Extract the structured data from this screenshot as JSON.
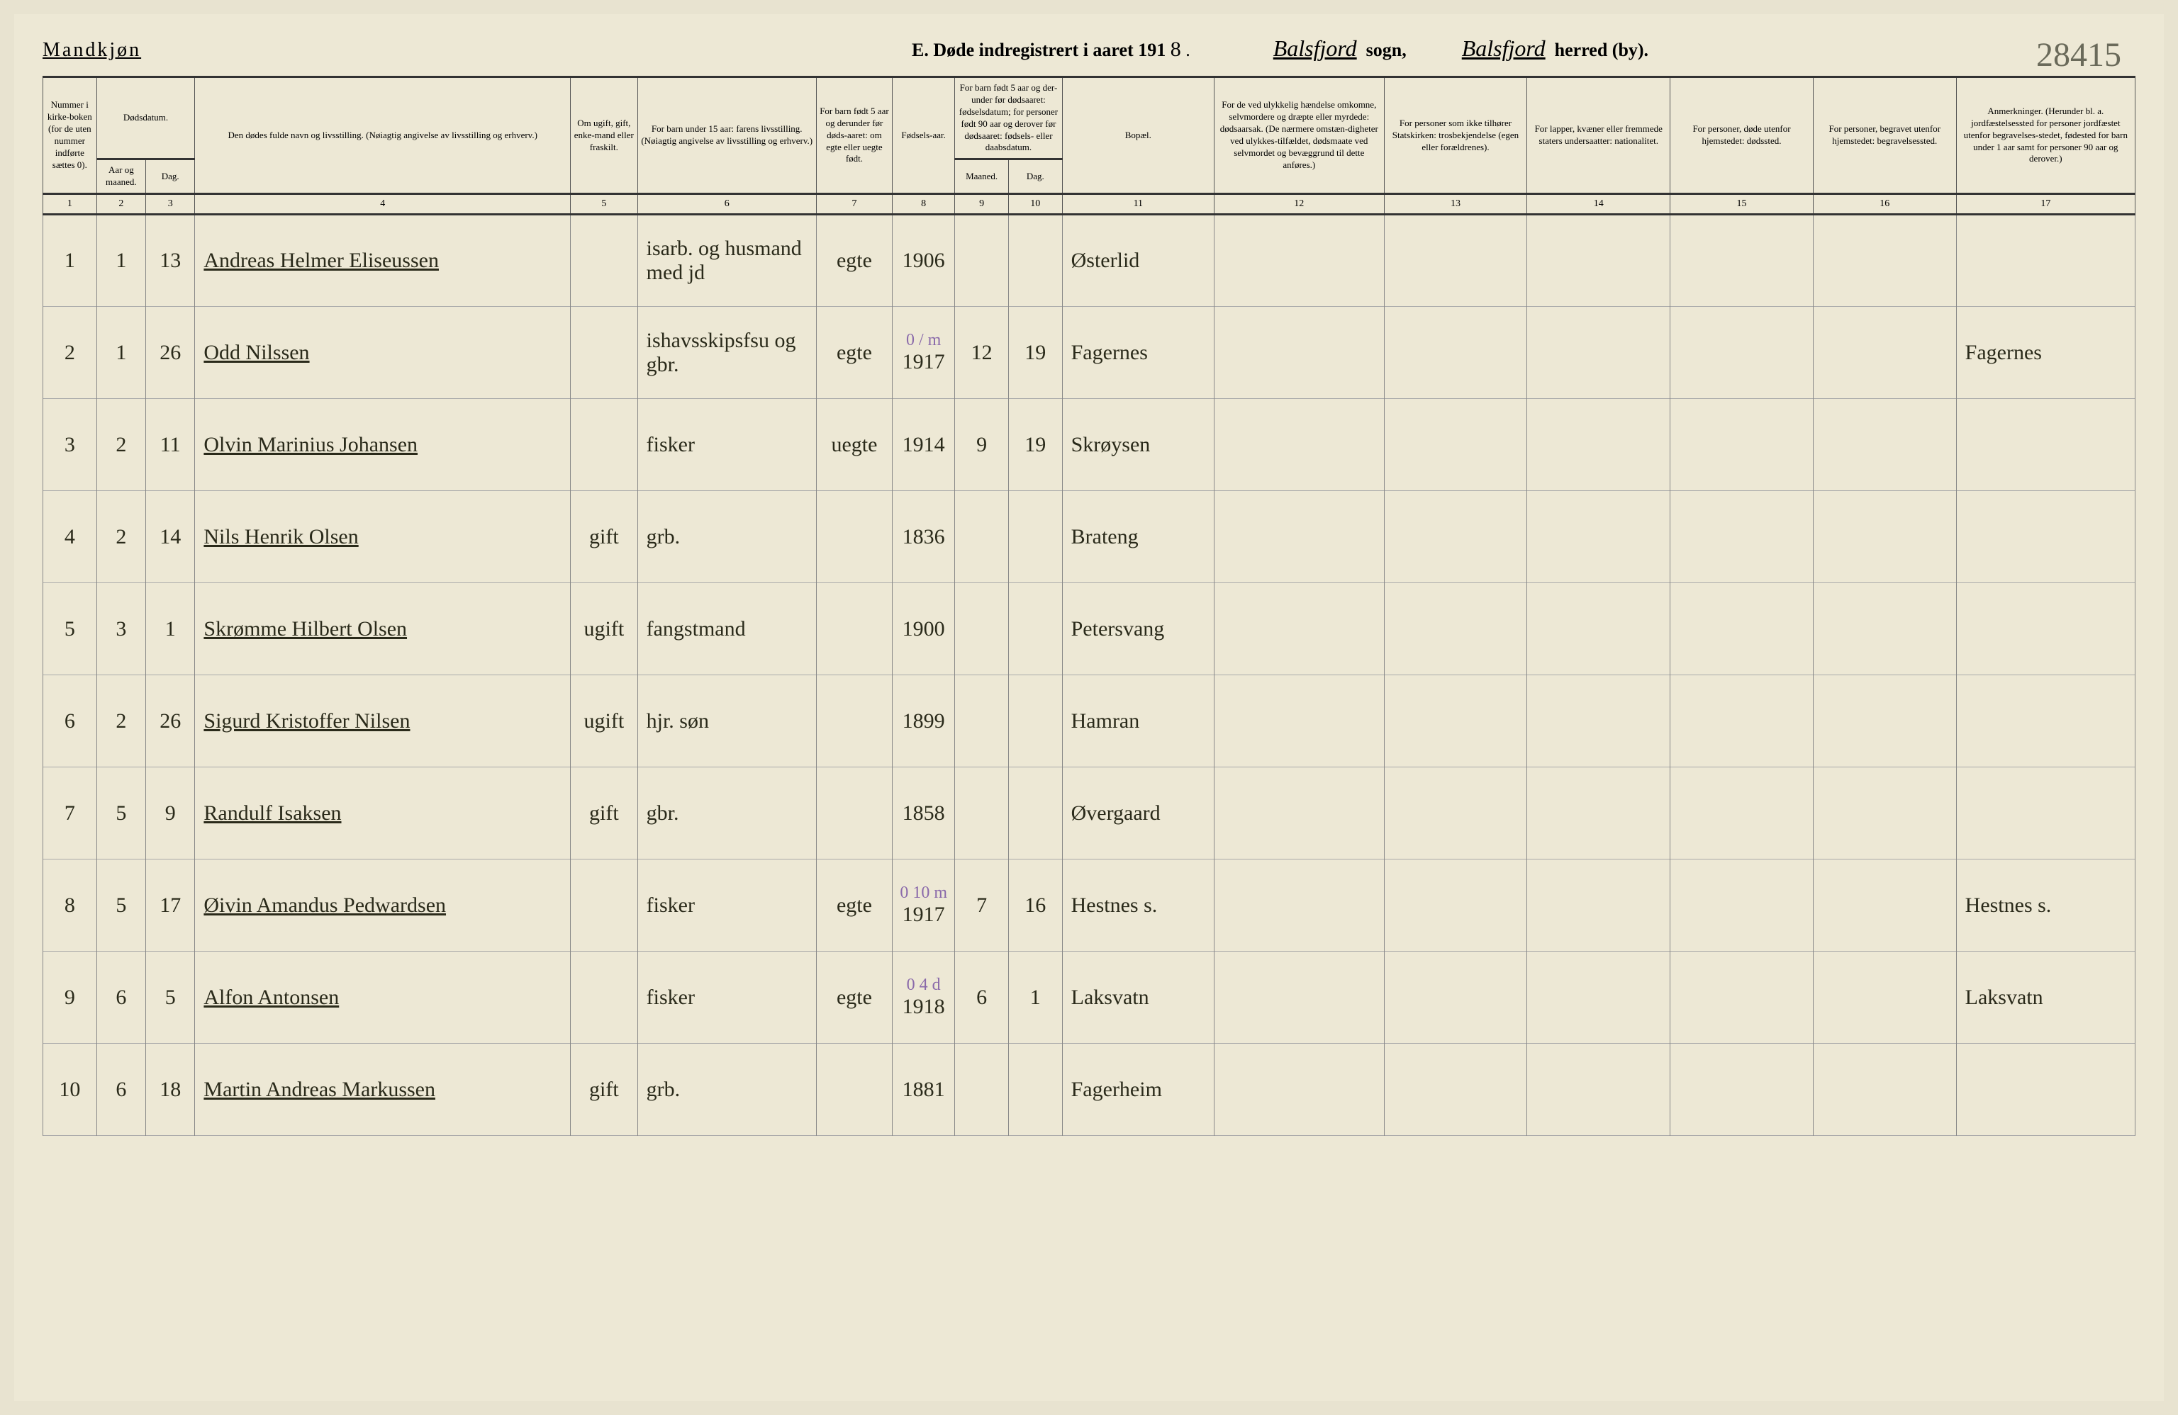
{
  "header": {
    "gender": "Mandkjøn",
    "title_prefix": "E.  Døde indregistrert i aaret 191",
    "year_suffix": "8",
    "sogn_value": "Balsfjord",
    "sogn_label": "sogn,",
    "herred_value": "Balsfjord",
    "herred_label": "herred (by).",
    "page_number": "28415"
  },
  "columns": {
    "c1": "Nummer i kirke-boken (for de uten nummer indførte sættes 0).",
    "c2a": "Dødsdatum.",
    "c2": "Aar og maaned.",
    "c3": "Dag.",
    "c4": "Den dødes fulde navn og livsstilling. (Nøiagtig angivelse av livsstilling og erhverv.)",
    "c5": "Om ugift, gift, enke-mand eller fraskilt.",
    "c6": "For barn under 15 aar: farens livsstilling. (Nøiagtig angivelse av livsstilling og erhverv.)",
    "c7": "For barn født 5 aar og derunder før døds-aaret: om egte eller uegte født.",
    "c8": "Fødsels-aar.",
    "c9a": "For barn født 5 aar og der-under før dødsaaret: fødselsdatum; for personer født 90 aar og derover før dødsaaret: fødsels- eller daabsdatum.",
    "c9": "Maaned.",
    "c10": "Dag.",
    "c11": "Bopæl.",
    "c12": "For de ved ulykkelig hændelse omkomne, selvmordere og dræpte eller myrdede: dødsaarsak. (De nærmere omstæn-digheter ved ulykkes-tilfældet, dødsmaate ved selvmordet og bevæggrund til dette anføres.)",
    "c13": "For personer som ikke tilhører Statskirken: trosbekjendelse (egen eller forældrenes).",
    "c14": "For lapper, kvæner eller fremmede staters undersaatter: nationalitet.",
    "c15": "For personer, døde utenfor hjemstedet: dødssted.",
    "c16": "For personer, begravet utenfor hjemstedet: begravelsessted.",
    "c17": "Anmerkninger. (Herunder bl. a. jordfæstelsessted for personer jordfæstet utenfor begravelses-stedet, fødested for barn under 1 aar samt for personer 90 aar og derover.)"
  },
  "colnums": [
    "1",
    "2",
    "3",
    "4",
    "5",
    "6",
    "7",
    "8",
    "9",
    "10",
    "11",
    "12",
    "13",
    "14",
    "15",
    "16",
    "17"
  ],
  "rows": [
    {
      "n": "1",
      "m": "1",
      "d": "13",
      "name": "Andreas Helmer Eliseussen",
      "status": "",
      "father": "isarb. og husmand med jd",
      "egte": "egte",
      "year": "1906",
      "bm": "",
      "bd": "",
      "place": "Østerlid",
      "note": ""
    },
    {
      "n": "2",
      "m": "1",
      "d": "26",
      "name": "Odd Nilssen",
      "status": "",
      "father": "ishavsskipsfsu og gbr.",
      "egte": "egte",
      "year": "1917",
      "bm": "12",
      "bd": "19",
      "place": "Fagernes",
      "note": "Fagernes",
      "purple": "0 / m"
    },
    {
      "n": "3",
      "m": "2",
      "d": "11",
      "name": "Olvin Marinius Johansen",
      "status": "",
      "father": "fisker",
      "egte": "uegte",
      "year": "1914",
      "bm": "9",
      "bd": "19",
      "place": "Skrøysen",
      "note": ""
    },
    {
      "n": "4",
      "m": "2",
      "d": "14",
      "name": "Nils Henrik Olsen",
      "status": "gift",
      "father": "grb.",
      "egte": "",
      "year": "1836",
      "bm": "",
      "bd": "",
      "place": "Brateng",
      "note": ""
    },
    {
      "n": "5",
      "m": "3",
      "d": "1",
      "name": "Skrømme Hilbert Olsen",
      "status": "ugift",
      "father": "fangstmand",
      "egte": "",
      "year": "1900",
      "bm": "",
      "bd": "",
      "place": "Petersvang",
      "note": ""
    },
    {
      "n": "6",
      "m": "2",
      "d": "26",
      "name": "Sigurd Kristoffer Nilsen",
      "status": "ugift",
      "father": "hjr. søn",
      "egte": "",
      "year": "1899",
      "bm": "",
      "bd": "",
      "place": "Hamran",
      "note": ""
    },
    {
      "n": "7",
      "m": "5",
      "d": "9",
      "name": "Randulf Isaksen",
      "status": "gift",
      "father": "gbr.",
      "egte": "",
      "year": "1858",
      "bm": "",
      "bd": "",
      "place": "Øvergaard",
      "note": ""
    },
    {
      "n": "8",
      "m": "5",
      "d": "17",
      "name": "Øivin Amandus Pedwardsen",
      "status": "",
      "father": "fisker",
      "egte": "egte",
      "year": "1917",
      "bm": "7",
      "bd": "16",
      "place": "Hestnes s.",
      "note": "Hestnes s.",
      "purple": "0 10 m"
    },
    {
      "n": "9",
      "m": "6",
      "d": "5",
      "name": "Alfon Antonsen",
      "status": "",
      "father": "fisker",
      "egte": "egte",
      "year": "1918",
      "bm": "6",
      "bd": "1",
      "place": "Laksvatn",
      "note": "Laksvatn",
      "purple": "0 4 d"
    },
    {
      "n": "10",
      "m": "6",
      "d": "18",
      "name": "Martin Andreas Markussen",
      "status": "gift",
      "father": "grb.",
      "egte": "",
      "year": "1881",
      "bm": "",
      "bd": "",
      "place": "Fagerheim",
      "note": ""
    }
  ]
}
